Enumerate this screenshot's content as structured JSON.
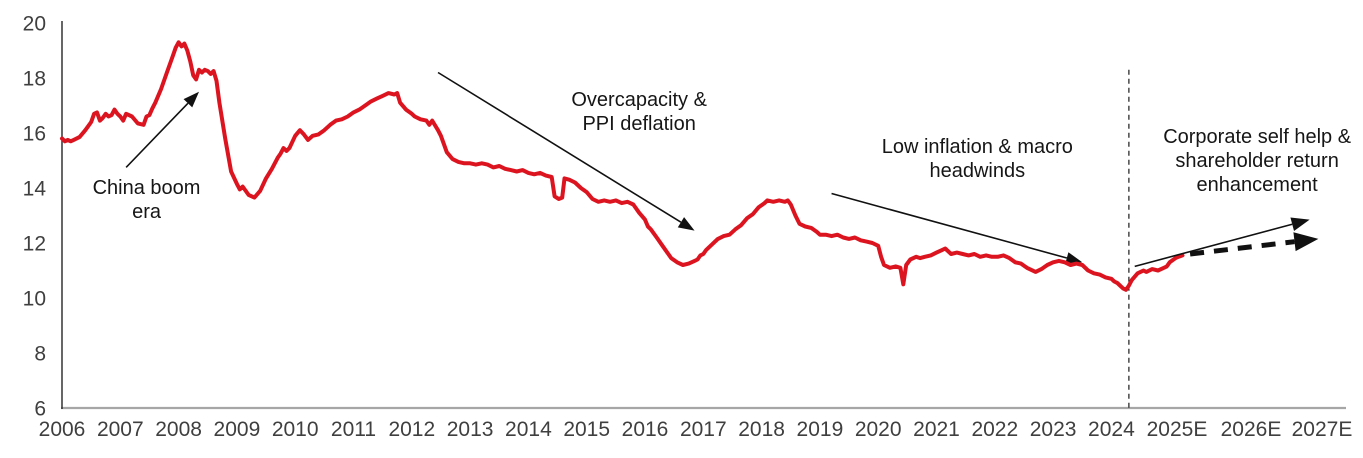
{
  "chart_data": {
    "type": "line",
    "title": "",
    "xlabel": "",
    "ylabel": "",
    "grid": false,
    "legend": "none",
    "ylim": [
      6,
      20
    ],
    "y_ticks": [
      "6",
      "8",
      "10",
      "12",
      "14",
      "16",
      "18",
      "20"
    ],
    "y_tick_values": [
      6,
      8,
      10,
      12,
      14,
      16,
      18,
      20
    ],
    "x_categories": [
      "2006",
      "2007",
      "2008",
      "2009",
      "2010",
      "2011",
      "2012",
      "2013",
      "2014",
      "2015",
      "2016",
      "2017",
      "2018",
      "2019",
      "2020",
      "2021",
      "2022",
      "2023",
      "2024",
      "2025E",
      "2026E",
      "2027E"
    ],
    "series": [
      {
        "name": "historical-line",
        "color": "#dc1420",
        "points": [
          [
            2006.0,
            15.8
          ],
          [
            2006.05,
            15.7
          ],
          [
            2006.1,
            15.75
          ],
          [
            2006.15,
            15.7
          ],
          [
            2006.2,
            15.75
          ],
          [
            2006.3,
            15.85
          ],
          [
            2006.4,
            16.1
          ],
          [
            2006.5,
            16.4
          ],
          [
            2006.55,
            16.7
          ],
          [
            2006.6,
            16.75
          ],
          [
            2006.65,
            16.45
          ],
          [
            2006.7,
            16.55
          ],
          [
            2006.75,
            16.7
          ],
          [
            2006.8,
            16.6
          ],
          [
            2006.85,
            16.65
          ],
          [
            2006.9,
            16.85
          ],
          [
            2006.95,
            16.7
          ],
          [
            2007.0,
            16.6
          ],
          [
            2007.05,
            16.45
          ],
          [
            2007.1,
            16.7
          ],
          [
            2007.2,
            16.6
          ],
          [
            2007.3,
            16.35
          ],
          [
            2007.4,
            16.3
          ],
          [
            2007.45,
            16.6
          ],
          [
            2007.5,
            16.65
          ],
          [
            2007.55,
            16.9
          ],
          [
            2007.6,
            17.1
          ],
          [
            2007.7,
            17.6
          ],
          [
            2007.8,
            18.2
          ],
          [
            2007.9,
            18.8
          ],
          [
            2007.95,
            19.1
          ],
          [
            2008.0,
            19.3
          ],
          [
            2008.05,
            19.15
          ],
          [
            2008.1,
            19.25
          ],
          [
            2008.15,
            19.0
          ],
          [
            2008.2,
            18.6
          ],
          [
            2008.25,
            18.1
          ],
          [
            2008.3,
            17.95
          ],
          [
            2008.35,
            18.3
          ],
          [
            2008.4,
            18.2
          ],
          [
            2008.45,
            18.3
          ],
          [
            2008.5,
            18.25
          ],
          [
            2008.55,
            18.15
          ],
          [
            2008.6,
            18.25
          ],
          [
            2008.65,
            17.9
          ],
          [
            2008.7,
            17.1
          ],
          [
            2008.8,
            15.8
          ],
          [
            2008.9,
            14.6
          ],
          [
            2009.0,
            14.15
          ],
          [
            2009.05,
            13.95
          ],
          [
            2009.1,
            14.05
          ],
          [
            2009.2,
            13.75
          ],
          [
            2009.3,
            13.65
          ],
          [
            2009.4,
            13.9
          ],
          [
            2009.5,
            14.35
          ],
          [
            2009.6,
            14.7
          ],
          [
            2009.7,
            15.1
          ],
          [
            2009.75,
            15.25
          ],
          [
            2009.8,
            15.45
          ],
          [
            2009.85,
            15.35
          ],
          [
            2009.9,
            15.45
          ],
          [
            2010.0,
            15.9
          ],
          [
            2010.08,
            16.1
          ],
          [
            2010.15,
            15.95
          ],
          [
            2010.22,
            15.75
          ],
          [
            2010.3,
            15.9
          ],
          [
            2010.4,
            15.95
          ],
          [
            2010.5,
            16.1
          ],
          [
            2010.6,
            16.3
          ],
          [
            2010.7,
            16.45
          ],
          [
            2010.8,
            16.5
          ],
          [
            2010.9,
            16.6
          ],
          [
            2011.0,
            16.75
          ],
          [
            2011.1,
            16.85
          ],
          [
            2011.2,
            17.0
          ],
          [
            2011.3,
            17.15
          ],
          [
            2011.4,
            17.25
          ],
          [
            2011.5,
            17.35
          ],
          [
            2011.6,
            17.45
          ],
          [
            2011.7,
            17.4
          ],
          [
            2011.75,
            17.45
          ],
          [
            2011.8,
            17.1
          ],
          [
            2011.9,
            16.85
          ],
          [
            2012.0,
            16.7
          ],
          [
            2012.05,
            16.6
          ],
          [
            2012.15,
            16.5
          ],
          [
            2012.25,
            16.45
          ],
          [
            2012.3,
            16.3
          ],
          [
            2012.35,
            16.45
          ],
          [
            2012.45,
            16.1
          ],
          [
            2012.5,
            15.9
          ],
          [
            2012.6,
            15.3
          ],
          [
            2012.7,
            15.05
          ],
          [
            2012.8,
            14.95
          ],
          [
            2012.9,
            14.9
          ],
          [
            2013.0,
            14.9
          ],
          [
            2013.1,
            14.85
          ],
          [
            2013.2,
            14.9
          ],
          [
            2013.3,
            14.85
          ],
          [
            2013.4,
            14.75
          ],
          [
            2013.5,
            14.8
          ],
          [
            2013.6,
            14.7
          ],
          [
            2013.7,
            14.65
          ],
          [
            2013.8,
            14.6
          ],
          [
            2013.9,
            14.65
          ],
          [
            2014.0,
            14.55
          ],
          [
            2014.1,
            14.5
          ],
          [
            2014.2,
            14.55
          ],
          [
            2014.3,
            14.45
          ],
          [
            2014.4,
            14.4
          ],
          [
            2014.45,
            13.7
          ],
          [
            2014.52,
            13.6
          ],
          [
            2014.58,
            13.65
          ],
          [
            2014.62,
            14.35
          ],
          [
            2014.7,
            14.3
          ],
          [
            2014.8,
            14.2
          ],
          [
            2014.9,
            14.0
          ],
          [
            2015.0,
            13.85
          ],
          [
            2015.1,
            13.6
          ],
          [
            2015.2,
            13.5
          ],
          [
            2015.3,
            13.55
          ],
          [
            2015.4,
            13.5
          ],
          [
            2015.5,
            13.55
          ],
          [
            2015.6,
            13.45
          ],
          [
            2015.7,
            13.5
          ],
          [
            2015.8,
            13.4
          ],
          [
            2015.9,
            13.1
          ],
          [
            2016.0,
            12.85
          ],
          [
            2016.05,
            12.6
          ],
          [
            2016.1,
            12.5
          ],
          [
            2016.2,
            12.2
          ],
          [
            2016.3,
            11.9
          ],
          [
            2016.4,
            11.6
          ],
          [
            2016.45,
            11.45
          ],
          [
            2016.55,
            11.3
          ],
          [
            2016.65,
            11.2
          ],
          [
            2016.75,
            11.25
          ],
          [
            2016.85,
            11.35
          ],
          [
            2016.9,
            11.4
          ],
          [
            2016.95,
            11.55
          ],
          [
            2017.0,
            11.6
          ],
          [
            2017.05,
            11.75
          ],
          [
            2017.15,
            11.95
          ],
          [
            2017.25,
            12.15
          ],
          [
            2017.35,
            12.25
          ],
          [
            2017.45,
            12.3
          ],
          [
            2017.55,
            12.5
          ],
          [
            2017.65,
            12.65
          ],
          [
            2017.75,
            12.9
          ],
          [
            2017.85,
            13.05
          ],
          [
            2017.95,
            13.3
          ],
          [
            2018.05,
            13.45
          ],
          [
            2018.1,
            13.55
          ],
          [
            2018.2,
            13.5
          ],
          [
            2018.3,
            13.55
          ],
          [
            2018.4,
            13.5
          ],
          [
            2018.45,
            13.55
          ],
          [
            2018.5,
            13.4
          ],
          [
            2018.58,
            13.0
          ],
          [
            2018.65,
            12.7
          ],
          [
            2018.75,
            12.6
          ],
          [
            2018.85,
            12.55
          ],
          [
            2018.95,
            12.4
          ],
          [
            2019.0,
            12.3
          ],
          [
            2019.1,
            12.3
          ],
          [
            2019.2,
            12.25
          ],
          [
            2019.3,
            12.3
          ],
          [
            2019.4,
            12.2
          ],
          [
            2019.5,
            12.15
          ],
          [
            2019.6,
            12.2
          ],
          [
            2019.7,
            12.1
          ],
          [
            2019.8,
            12.05
          ],
          [
            2019.9,
            12.0
          ],
          [
            2020.0,
            11.9
          ],
          [
            2020.05,
            11.5
          ],
          [
            2020.1,
            11.2
          ],
          [
            2020.2,
            11.1
          ],
          [
            2020.3,
            11.15
          ],
          [
            2020.38,
            11.1
          ],
          [
            2020.43,
            10.5
          ],
          [
            2020.48,
            11.2
          ],
          [
            2020.55,
            11.4
          ],
          [
            2020.65,
            11.5
          ],
          [
            2020.72,
            11.45
          ],
          [
            2020.8,
            11.5
          ],
          [
            2020.9,
            11.55
          ],
          [
            2021.0,
            11.65
          ],
          [
            2021.1,
            11.75
          ],
          [
            2021.15,
            11.8
          ],
          [
            2021.25,
            11.6
          ],
          [
            2021.35,
            11.65
          ],
          [
            2021.45,
            11.6
          ],
          [
            2021.55,
            11.55
          ],
          [
            2021.65,
            11.6
          ],
          [
            2021.75,
            11.5
          ],
          [
            2021.85,
            11.55
          ],
          [
            2021.95,
            11.5
          ],
          [
            2022.05,
            11.5
          ],
          [
            2022.15,
            11.55
          ],
          [
            2022.25,
            11.45
          ],
          [
            2022.35,
            11.3
          ],
          [
            2022.45,
            11.25
          ],
          [
            2022.55,
            11.1
          ],
          [
            2022.7,
            10.95
          ],
          [
            2022.8,
            11.05
          ],
          [
            2022.9,
            11.2
          ],
          [
            2023.0,
            11.3
          ],
          [
            2023.1,
            11.35
          ],
          [
            2023.2,
            11.3
          ],
          [
            2023.3,
            11.2
          ],
          [
            2023.4,
            11.25
          ],
          [
            2023.5,
            11.2
          ],
          [
            2023.6,
            11.0
          ],
          [
            2023.7,
            10.9
          ],
          [
            2023.8,
            10.85
          ],
          [
            2023.9,
            10.75
          ],
          [
            2024.0,
            10.7
          ],
          [
            2024.05,
            10.6
          ],
          [
            2024.1,
            10.55
          ],
          [
            2024.15,
            10.45
          ],
          [
            2024.2,
            10.35
          ],
          [
            2024.25,
            10.3
          ],
          [
            2024.3,
            10.45
          ],
          [
            2024.35,
            10.65
          ],
          [
            2024.45,
            10.9
          ],
          [
            2024.55,
            11.0
          ],
          [
            2024.6,
            10.95
          ],
          [
            2024.7,
            11.05
          ],
          [
            2024.8,
            11.0
          ],
          [
            2024.9,
            11.1
          ],
          [
            2024.95,
            11.15
          ],
          [
            2025.0,
            11.3
          ],
          [
            2025.1,
            11.45
          ],
          [
            2025.15,
            11.5
          ],
          [
            2025.22,
            11.55
          ]
        ]
      }
    ],
    "annotations": [
      {
        "id": "china-boom-era",
        "lines": [
          "China boom",
          "era"
        ],
        "center_year": 2007.45,
        "center_value": 13.56
      },
      {
        "id": "overcapacity-ppi-deflation",
        "lines": [
          "Overcapacity &",
          "PPI deflation"
        ],
        "center_year": 2015.9,
        "center_value": 16.76
      },
      {
        "id": "low-inflation-macro-headwinds",
        "lines": [
          "Low inflation & macro",
          "headwinds"
        ],
        "center_year": 2021.7,
        "center_value": 15.07
      },
      {
        "id": "corporate-self-help-shareholder-return",
        "lines": [
          "Corporate self help &",
          "shareholder return",
          "enhancement"
        ],
        "center_year": 2026.5,
        "center_value": 15.0
      }
    ],
    "arrows": [
      {
        "id": "china-boom-arrow",
        "style": "annotation",
        "from_year": 2007.1,
        "from_value": 14.75,
        "to_year": 2008.35,
        "to_value": 17.5
      },
      {
        "id": "overcapacity-arrow",
        "style": "annotation",
        "from_year": 2012.45,
        "from_value": 18.2,
        "to_year": 2016.85,
        "to_value": 12.45
      },
      {
        "id": "low-inflation-arrow",
        "style": "annotation",
        "from_year": 2019.2,
        "from_value": 13.8,
        "to_year": 2023.5,
        "to_value": 11.3
      },
      {
        "id": "projection-solid-arrow",
        "style": "projection-solid",
        "from_year": 2024.4,
        "from_value": 11.15,
        "to_year": 2027.4,
        "to_value": 12.85
      },
      {
        "id": "projection-dashed-arrow",
        "style": "projection-dashed",
        "from_year": 2025.35,
        "from_value": 11.6,
        "to_year": 2027.55,
        "to_value": 12.15
      }
    ],
    "divider": {
      "year": 2024.3,
      "top_value": 18.3,
      "bottom_value": 6.0,
      "style": "dashed"
    },
    "colors": {
      "line": "#dc1420",
      "axis_text": "#3f3f3f",
      "annotation_text": "#161616",
      "x_axis_line": "#a6a6a6",
      "y_axis_line": "#262626",
      "arrow": "#111111",
      "background": "#ffffff"
    }
  }
}
